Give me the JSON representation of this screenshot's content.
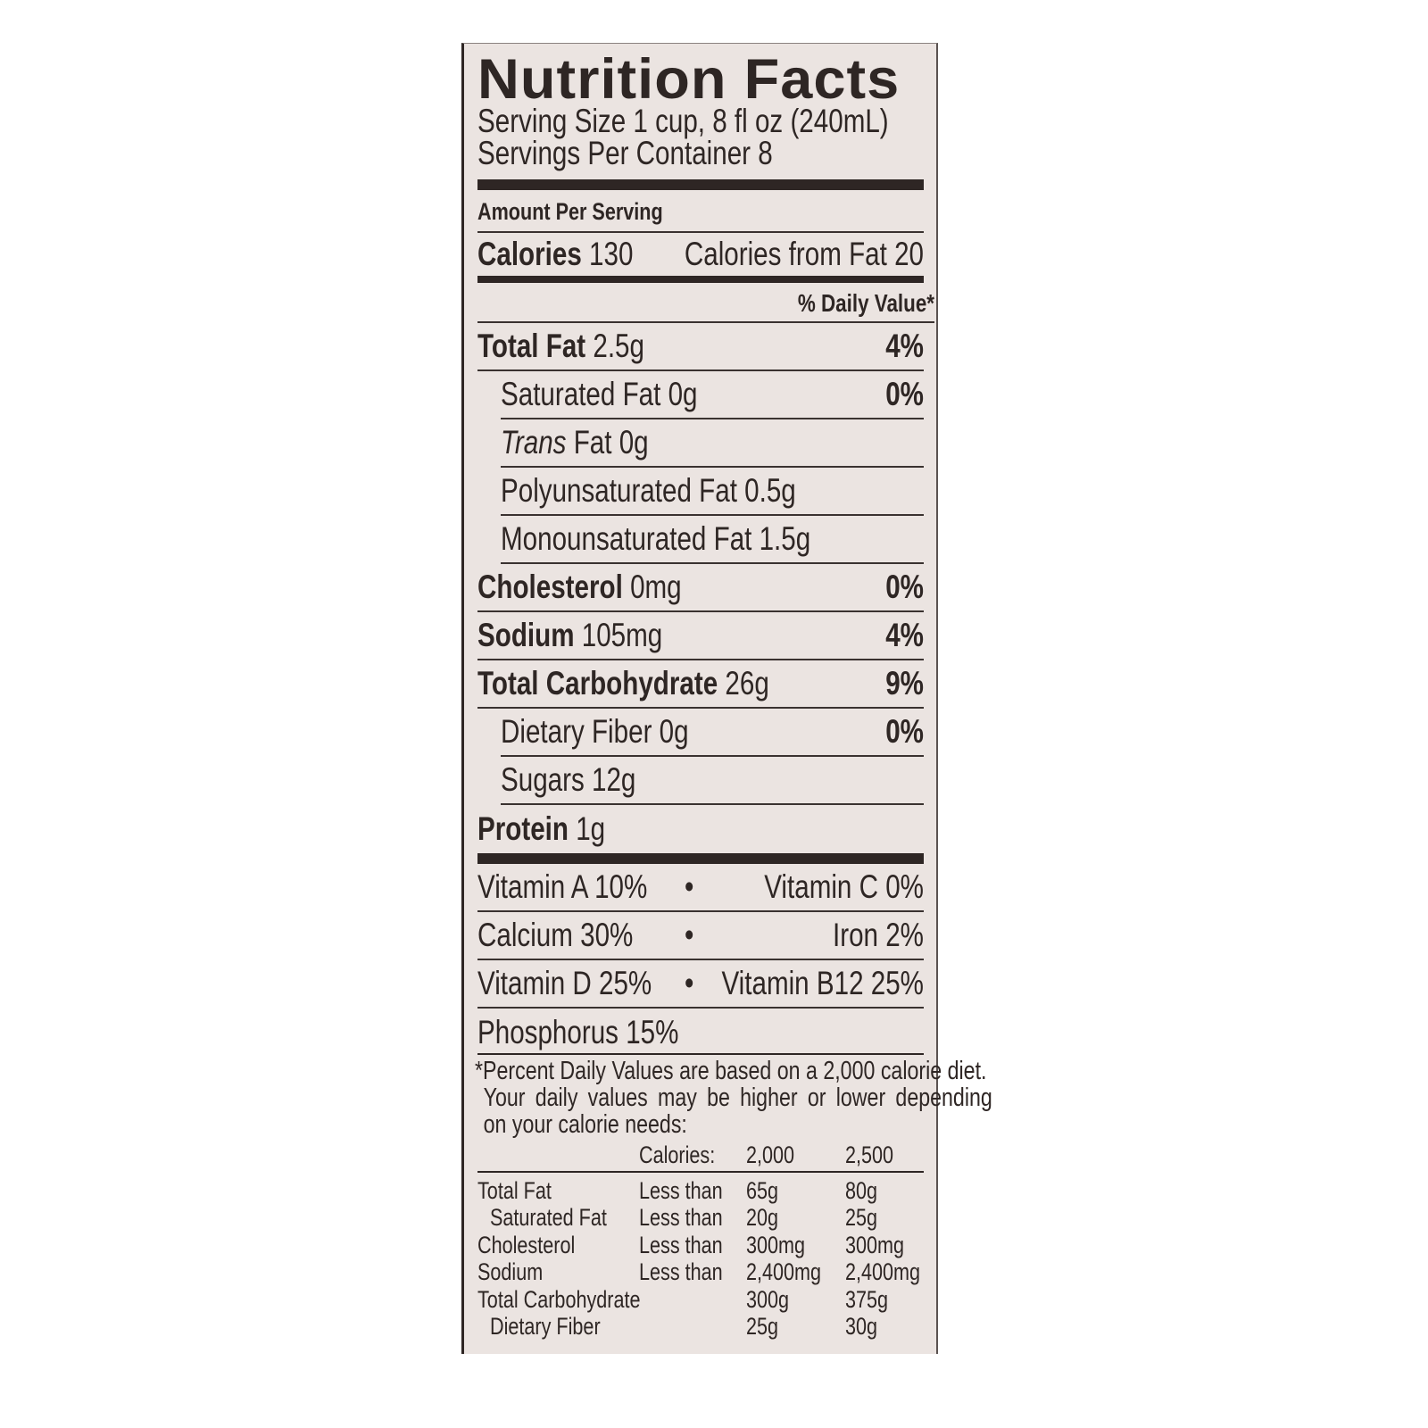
{
  "title": "Nutrition Facts",
  "serving_size": "Serving Size 1 cup, 8 fl oz (240mL)",
  "servings_per_container": "Servings Per Container 8",
  "amount_per_serving": "Amount Per Serving",
  "calories": {
    "label": "Calories",
    "value": "130",
    "from_fat": "Calories from Fat 20"
  },
  "daily_value_header": "% Daily Value*",
  "nutrients": [
    {
      "label": "Total Fat",
      "value": "2.5g",
      "pct": "4%"
    },
    {
      "label": "Saturated Fat",
      "value": "0g",
      "pct": "0%"
    },
    {
      "label": "Trans",
      "label_rest": "Fat",
      "value": "0g",
      "pct": ""
    },
    {
      "label": "Polyunsaturated Fat",
      "value": "0.5g",
      "pct": ""
    },
    {
      "label": "Monounsaturated Fat",
      "value": "1.5g",
      "pct": ""
    },
    {
      "label": "Cholesterol",
      "value": "0mg",
      "pct": "0%"
    },
    {
      "label": "Sodium",
      "value": "105mg",
      "pct": "4%"
    },
    {
      "label": "Total Carbohydrate",
      "value": "26g",
      "pct": "9%"
    },
    {
      "label": "Dietary Fiber",
      "value": "0g",
      "pct": "0%"
    },
    {
      "label": "Sugars",
      "value": "12g",
      "pct": ""
    },
    {
      "label": "Protein",
      "value": "1g",
      "pct": ""
    }
  ],
  "vitamins": [
    {
      "left": "Vitamin A 10%",
      "bullet": "•",
      "right": "Vitamin C 0%"
    },
    {
      "left": "Calcium 30%",
      "bullet": "•",
      "right": "Iron 2%"
    },
    {
      "left": "Vitamin D 25%",
      "bullet": "•",
      "right": "Vitamin B12 25%"
    },
    {
      "left": "Phosphorus 15%"
    }
  ],
  "footnote": [
    "*Percent Daily Values are based on a 2,000 calorie diet.",
    "Your daily values may be higher or lower depending",
    "on your calorie needs:"
  ],
  "reference_table": {
    "header": [
      "",
      "Calories:",
      "2,000",
      "2,500"
    ],
    "rows": [
      [
        "Total Fat",
        "Less than",
        "65g",
        "80g"
      ],
      [
        "Saturated Fat",
        "Less than",
        "20g",
        "25g"
      ],
      [
        "Cholesterol",
        "Less than",
        "300mg",
        "300mg"
      ],
      [
        "Sodium",
        "Less than",
        "2,400mg",
        "2,400mg"
      ],
      [
        "Total Carbohydrate",
        "",
        "300g",
        "375g"
      ],
      [
        "Dietary Fiber",
        "",
        "25g",
        "30g"
      ]
    ]
  }
}
